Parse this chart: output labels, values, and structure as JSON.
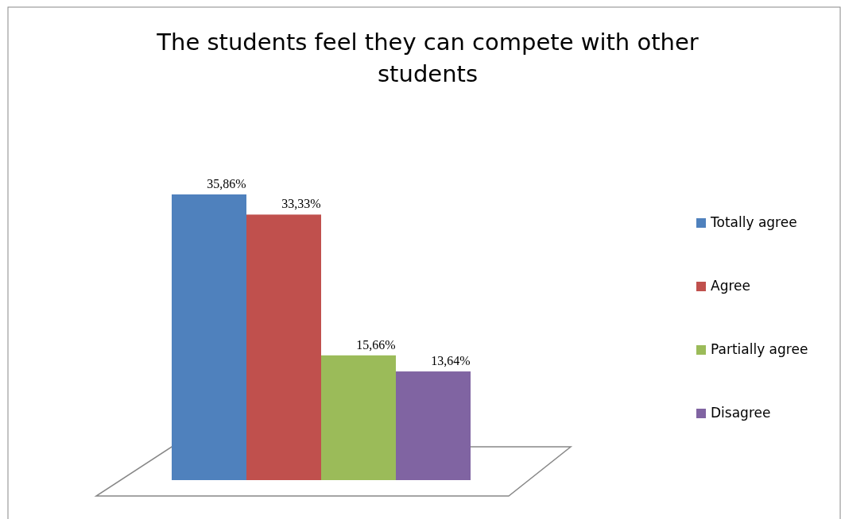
{
  "chart_data": {
    "type": "bar",
    "title": "The students feel they can compete with other students",
    "categories": [
      null
    ],
    "series": [
      {
        "name": "Totally agree",
        "color": "#4f81bd",
        "values": [
          35.86
        ],
        "value_labels": [
          "35,86%"
        ]
      },
      {
        "name": "Agree",
        "color": "#c0504d",
        "values": [
          33.33
        ],
        "value_labels": [
          "33,33%"
        ]
      },
      {
        "name": "Partially agree",
        "color": "#9bbb59",
        "values": [
          15.66
        ],
        "value_labels": [
          "15,66%"
        ]
      },
      {
        "name": "Disagree",
        "color": "#8064a2",
        "values": [
          13.64
        ],
        "value_labels": [
          "13,64%"
        ]
      }
    ],
    "legend": "right"
  }
}
